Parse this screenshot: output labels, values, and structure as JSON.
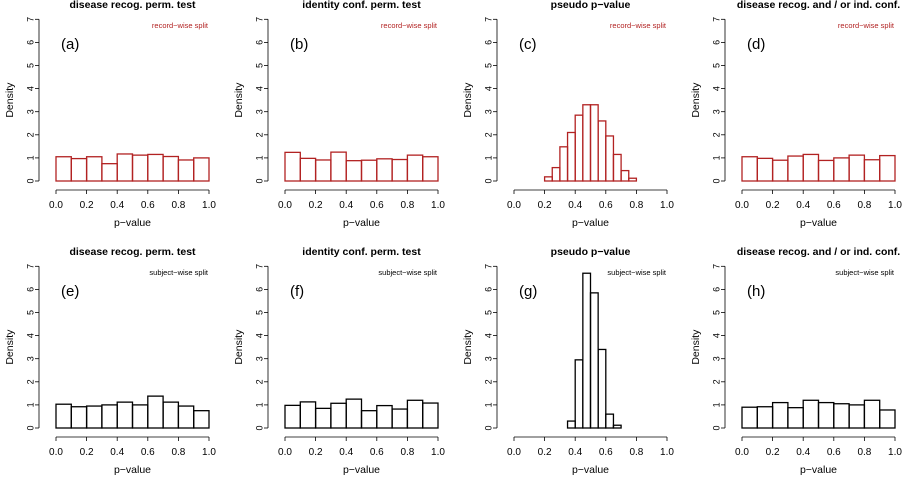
{
  "chart_data": [
    {
      "type": "bar",
      "panel_label": "(a)",
      "title": "disease recog. perm. test",
      "split": "record−wise split",
      "xlabel": "p−value",
      "ylabel": "Density",
      "xlim": [
        0,
        1
      ],
      "ylim": [
        0,
        7
      ],
      "bin_edges": [
        0.0,
        0.1,
        0.2,
        0.3,
        0.4,
        0.5,
        0.6,
        0.7,
        0.8,
        0.9,
        1.0
      ],
      "values": [
        1.05,
        0.97,
        1.05,
        0.75,
        1.17,
        1.12,
        1.15,
        1.06,
        0.91,
        1.0
      ],
      "color": "#b22222"
    },
    {
      "type": "bar",
      "panel_label": "(b)",
      "title": "identity conf. perm. test",
      "split": "record−wise split",
      "xlabel": "p−value",
      "ylabel": "Density",
      "xlim": [
        0,
        1
      ],
      "ylim": [
        0,
        7
      ],
      "bin_edges": [
        0.0,
        0.1,
        0.2,
        0.3,
        0.4,
        0.5,
        0.6,
        0.7,
        0.8,
        0.9,
        1.0
      ],
      "values": [
        1.24,
        0.98,
        0.91,
        1.25,
        0.88,
        0.9,
        0.96,
        0.93,
        1.12,
        1.05
      ],
      "color": "#b22222"
    },
    {
      "type": "bar",
      "panel_label": "(c)",
      "title": "pseudo p−value",
      "split": "record−wise split",
      "xlabel": "p−value",
      "ylabel": "Density",
      "xlim": [
        0,
        1
      ],
      "ylim": [
        0,
        7
      ],
      "bin_edges": [
        0.2,
        0.25,
        0.3,
        0.35,
        0.4,
        0.45,
        0.5,
        0.55,
        0.6,
        0.65,
        0.7,
        0.75,
        0.8
      ],
      "values": [
        0.18,
        0.58,
        1.48,
        2.1,
        2.85,
        3.3,
        3.3,
        2.6,
        1.95,
        1.15,
        0.45,
        0.12
      ],
      "color": "#b22222"
    },
    {
      "type": "bar",
      "panel_label": "(d)",
      "title": "disease recog. and / or ind. conf.",
      "split": "record−wise split",
      "xlabel": "p−value",
      "ylabel": "Density",
      "xlim": [
        0,
        1
      ],
      "ylim": [
        0,
        7
      ],
      "bin_edges": [
        0.0,
        0.1,
        0.2,
        0.3,
        0.4,
        0.5,
        0.6,
        0.7,
        0.8,
        0.9,
        1.0
      ],
      "values": [
        1.05,
        0.98,
        0.9,
        1.08,
        1.15,
        0.89,
        1.0,
        1.12,
        0.92,
        1.1
      ],
      "color": "#b22222"
    },
    {
      "type": "bar",
      "panel_label": "(e)",
      "title": "disease recog. perm. test",
      "split": "subject−wise split",
      "xlabel": "p−value",
      "ylabel": "Density",
      "xlim": [
        0,
        1
      ],
      "ylim": [
        0,
        7
      ],
      "bin_edges": [
        0.0,
        0.1,
        0.2,
        0.3,
        0.4,
        0.5,
        0.6,
        0.7,
        0.8,
        0.9,
        1.0
      ],
      "values": [
        1.03,
        0.92,
        0.95,
        1.0,
        1.12,
        1.0,
        1.38,
        1.12,
        0.95,
        0.75
      ],
      "color": "#000000"
    },
    {
      "type": "bar",
      "panel_label": "(f)",
      "title": "identity conf. perm. test",
      "split": "subject−wise split",
      "xlabel": "p−value",
      "ylabel": "Density",
      "xlim": [
        0,
        1
      ],
      "ylim": [
        0,
        7
      ],
      "bin_edges": [
        0.0,
        0.1,
        0.2,
        0.3,
        0.4,
        0.5,
        0.6,
        0.7,
        0.8,
        0.9,
        1.0
      ],
      "values": [
        0.98,
        1.13,
        0.85,
        1.07,
        1.25,
        0.75,
        0.97,
        0.82,
        1.2,
        1.08
      ],
      "color": "#000000"
    },
    {
      "type": "bar",
      "panel_label": "(g)",
      "title": "pseudo p−value",
      "split": "subject−wise split",
      "xlabel": "p−value",
      "ylabel": "Density",
      "xlim": [
        0,
        1
      ],
      "ylim": [
        0,
        7
      ],
      "bin_edges": [
        0.35,
        0.4,
        0.45,
        0.5,
        0.55,
        0.6,
        0.65,
        0.7
      ],
      "values": [
        0.3,
        2.95,
        6.7,
        5.85,
        3.4,
        0.6,
        0.12
      ],
      "color": "#000000"
    },
    {
      "type": "bar",
      "panel_label": "(h)",
      "title": "disease recog. and / or ind. conf.",
      "split": "subject−wise split",
      "xlabel": "p−value",
      "ylabel": "Density",
      "xlim": [
        0,
        1
      ],
      "ylim": [
        0,
        7
      ],
      "bin_edges": [
        0.0,
        0.1,
        0.2,
        0.3,
        0.4,
        0.5,
        0.6,
        0.7,
        0.8,
        0.9,
        1.0
      ],
      "values": [
        0.9,
        0.92,
        1.1,
        0.88,
        1.2,
        1.1,
        1.05,
        1.0,
        1.2,
        0.78
      ],
      "color": "#000000"
    }
  ],
  "axis": {
    "xticks": [
      0.0,
      0.2,
      0.4,
      0.6,
      0.8,
      1.0
    ],
    "xtick_labels": [
      "0.0",
      "0.2",
      "0.4",
      "0.6",
      "0.8",
      "1.0"
    ],
    "yticks": [
      0,
      1,
      2,
      3,
      4,
      5,
      6,
      7
    ],
    "ytick_labels": [
      "0",
      "1",
      "2",
      "3",
      "4",
      "5",
      "6",
      "7"
    ]
  },
  "colors": {
    "record_wise": "#b22222",
    "subject_wise": "#000000",
    "axis": "#000000"
  }
}
